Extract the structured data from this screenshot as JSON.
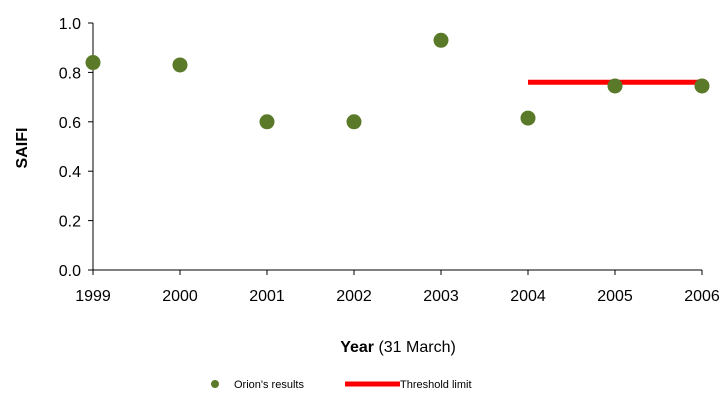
{
  "chart_data": {
    "type": "scatter",
    "title": "",
    "xlabel_bold": "Year",
    "xlabel_rest": " (31 March)",
    "ylabel": "SAIFI",
    "ylim": [
      0,
      1.0
    ],
    "yticks": [
      "0.0",
      "0.2",
      "0.4",
      "0.6",
      "0.8",
      "1.0"
    ],
    "xticks": [
      "1999",
      "2000",
      "2001",
      "2002",
      "2003",
      "2004",
      "2005",
      "2006"
    ],
    "xlim": [
      1999,
      2006
    ],
    "grid": false,
    "legend_position": "bottom",
    "series": [
      {
        "name": "Orion's results",
        "kind": "scatter",
        "color": "#5a7a2a",
        "points": [
          {
            "x": 1999,
            "y": 0.84
          },
          {
            "x": 2000,
            "y": 0.83
          },
          {
            "x": 2001,
            "y": 0.6
          },
          {
            "x": 2002,
            "y": 0.6
          },
          {
            "x": 2003,
            "y": 0.93
          },
          {
            "x": 2004,
            "y": 0.615
          },
          {
            "x": 2005,
            "y": 0.745
          },
          {
            "x": 2006,
            "y": 0.745
          }
        ]
      },
      {
        "name": "Threshold limit",
        "kind": "line",
        "color": "#ff0000",
        "points": [
          {
            "x": 2004,
            "y": 0.76
          },
          {
            "x": 2006,
            "y": 0.76
          }
        ]
      }
    ]
  }
}
